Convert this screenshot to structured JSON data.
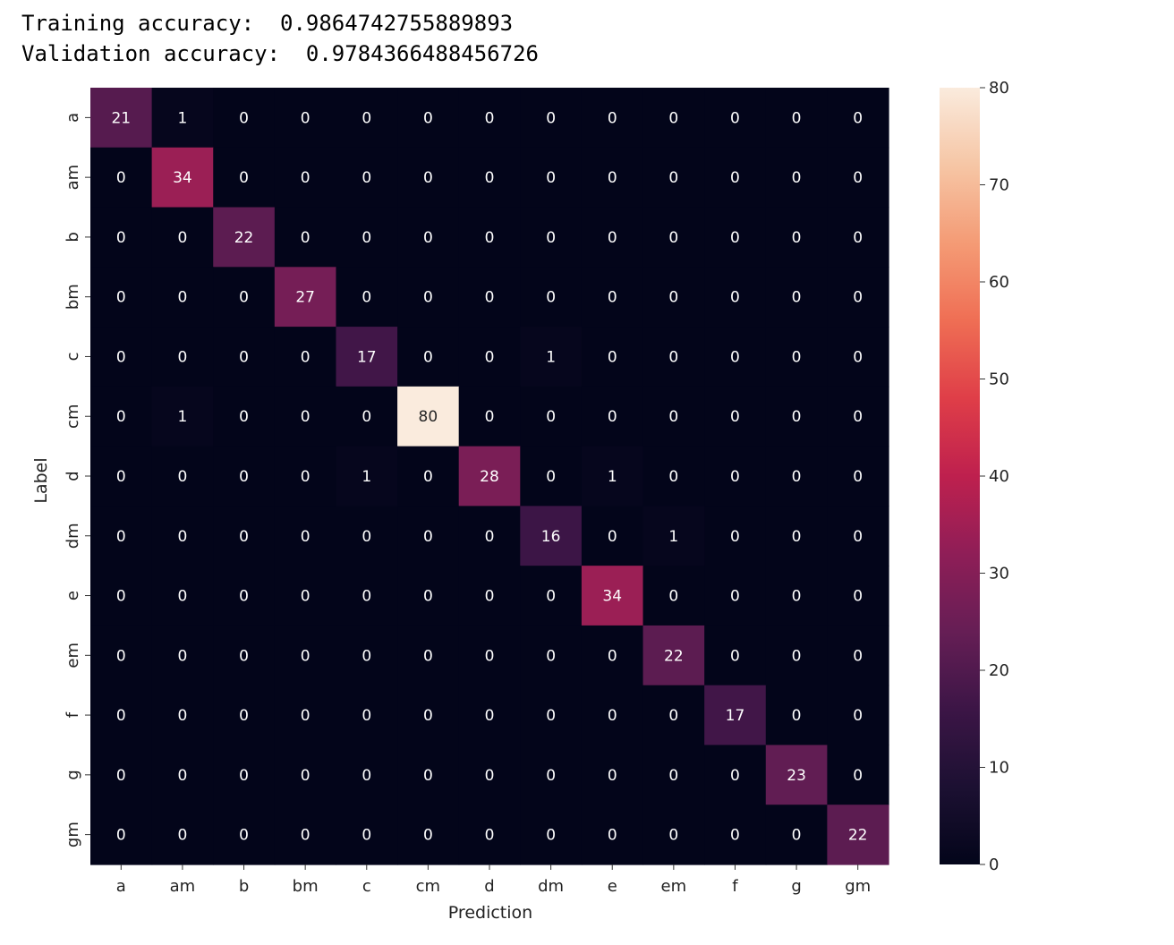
{
  "console": {
    "training_label": "Training accuracy:",
    "training_value": "0.9864742755889893",
    "validation_label": "Validation accuracy:",
    "validation_value": "0.9784366488456726"
  },
  "chart_data": {
    "type": "heatmap",
    "title": "",
    "xlabel": "Prediction",
    "ylabel": "Label",
    "x_categories": [
      "a",
      "am",
      "b",
      "bm",
      "c",
      "cm",
      "d",
      "dm",
      "e",
      "em",
      "f",
      "g",
      "gm"
    ],
    "y_categories": [
      "a",
      "am",
      "b",
      "bm",
      "c",
      "cm",
      "d",
      "dm",
      "e",
      "em",
      "f",
      "g",
      "gm"
    ],
    "matrix": [
      [
        21,
        1,
        0,
        0,
        0,
        0,
        0,
        0,
        0,
        0,
        0,
        0,
        0
      ],
      [
        0,
        34,
        0,
        0,
        0,
        0,
        0,
        0,
        0,
        0,
        0,
        0,
        0
      ],
      [
        0,
        0,
        22,
        0,
        0,
        0,
        0,
        0,
        0,
        0,
        0,
        0,
        0
      ],
      [
        0,
        0,
        0,
        27,
        0,
        0,
        0,
        0,
        0,
        0,
        0,
        0,
        0
      ],
      [
        0,
        0,
        0,
        0,
        17,
        0,
        0,
        1,
        0,
        0,
        0,
        0,
        0
      ],
      [
        0,
        1,
        0,
        0,
        0,
        80,
        0,
        0,
        0,
        0,
        0,
        0,
        0
      ],
      [
        0,
        0,
        0,
        0,
        1,
        0,
        28,
        0,
        1,
        0,
        0,
        0,
        0
      ],
      [
        0,
        0,
        0,
        0,
        0,
        0,
        0,
        16,
        0,
        1,
        0,
        0,
        0
      ],
      [
        0,
        0,
        0,
        0,
        0,
        0,
        0,
        0,
        34,
        0,
        0,
        0,
        0
      ],
      [
        0,
        0,
        0,
        0,
        0,
        0,
        0,
        0,
        0,
        22,
        0,
        0,
        0
      ],
      [
        0,
        0,
        0,
        0,
        0,
        0,
        0,
        0,
        0,
        0,
        17,
        0,
        0
      ],
      [
        0,
        0,
        0,
        0,
        0,
        0,
        0,
        0,
        0,
        0,
        0,
        23,
        0
      ],
      [
        0,
        0,
        0,
        0,
        0,
        0,
        0,
        0,
        0,
        0,
        0,
        0,
        22
      ]
    ],
    "colorbar": {
      "range": [
        0,
        80
      ],
      "ticks": [
        0,
        10,
        20,
        30,
        40,
        50,
        60,
        70,
        80
      ],
      "colormap": "rocket"
    },
    "annotations": true,
    "grid": false
  }
}
